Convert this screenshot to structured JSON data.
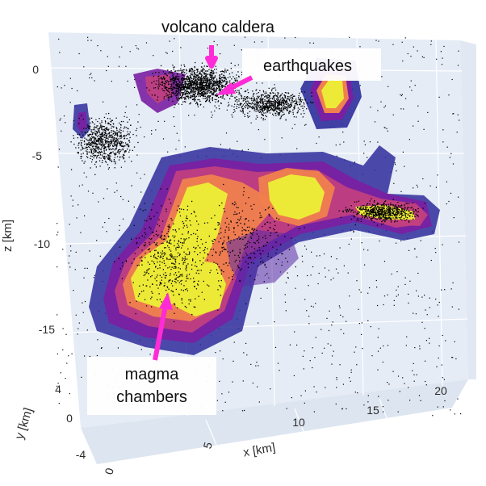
{
  "annotations": {
    "caldera": "volcano caldera",
    "earthquakes": "earthquakes",
    "magma_line1": "magma",
    "magma_line2": "chambers"
  },
  "axes": {
    "z_title": "z [km]",
    "x_title": "x [km]",
    "y_title": "y [km]",
    "z_ticks": [
      "0",
      "-5",
      "-10",
      "-15"
    ],
    "x_ticks": [
      "0",
      "5",
      "10",
      "15",
      "20"
    ],
    "y_ticks": [
      "4",
      "0",
      "-4"
    ]
  },
  "colors": {
    "pane": "#e5ecf6",
    "grid": "#ffffff",
    "arrow": "#ff2bd6",
    "contour_outer": "#2f2d9c",
    "contour_mid1": "#7a1fa2",
    "contour_mid2": "#c2407e",
    "contour_mid3": "#f0804e",
    "contour_inner": "#ecea36",
    "points": "#000000"
  }
}
